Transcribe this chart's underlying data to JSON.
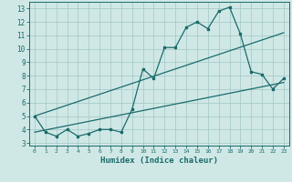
{
  "title": "",
  "xlabel": "Humidex (Indice chaleur)",
  "ylabel": "",
  "bg_color": "#cfe8e6",
  "grid_color": "#a8cccb",
  "line_color": "#1a6b6b",
  "xlim": [
    -0.5,
    23.5
  ],
  "ylim": [
    2.8,
    13.5
  ],
  "xticks": [
    0,
    1,
    2,
    3,
    4,
    5,
    6,
    7,
    8,
    9,
    10,
    11,
    12,
    13,
    14,
    15,
    16,
    17,
    18,
    19,
    20,
    21,
    22,
    23
  ],
  "yticks": [
    3,
    4,
    5,
    6,
    7,
    8,
    9,
    10,
    11,
    12,
    13
  ],
  "line1_x": [
    0,
    1,
    2,
    3,
    4,
    5,
    6,
    7,
    8,
    9,
    10,
    11,
    12,
    13,
    14,
    15,
    16,
    17,
    18,
    19,
    20,
    21,
    22,
    23
  ],
  "line1_y": [
    5.0,
    3.8,
    3.5,
    4.0,
    3.5,
    3.7,
    4.0,
    4.0,
    3.8,
    5.5,
    8.5,
    7.8,
    10.1,
    10.1,
    11.6,
    12.0,
    11.5,
    12.8,
    13.1,
    11.1,
    8.3,
    8.1,
    7.0,
    7.8
  ],
  "line2_x": [
    0,
    23
  ],
  "line2_y": [
    5.0,
    11.2
  ],
  "line3_x": [
    0,
    23
  ],
  "line3_y": [
    3.8,
    7.5
  ],
  "marker": "s",
  "markersize": 2.0,
  "linewidth": 0.9
}
